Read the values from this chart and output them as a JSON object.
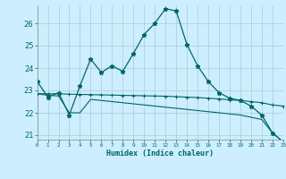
{
  "xlabel": "Humidex (Indice chaleur)",
  "background_color": "#cceeff",
  "grid_color": "#aacccc",
  "line_color": "#006666",
  "xlim": [
    0,
    23
  ],
  "ylim": [
    20.8,
    26.8
  ],
  "yticks": [
    21,
    22,
    23,
    24,
    25,
    26
  ],
  "xticks": [
    0,
    1,
    2,
    3,
    4,
    5,
    6,
    7,
    8,
    9,
    10,
    11,
    12,
    13,
    14,
    15,
    16,
    17,
    18,
    19,
    20,
    21,
    22,
    23
  ],
  "series1_x": [
    0,
    1,
    2,
    3,
    4,
    5,
    6,
    7,
    8,
    9,
    10,
    11,
    12,
    13,
    14,
    15,
    16,
    17,
    18,
    19,
    20,
    21,
    22,
    23
  ],
  "series1_y": [
    23.4,
    22.7,
    22.9,
    21.9,
    23.2,
    24.4,
    23.8,
    24.1,
    23.85,
    24.65,
    25.5,
    26.0,
    26.65,
    26.55,
    25.05,
    24.1,
    23.4,
    22.9,
    22.65,
    22.55,
    22.3,
    21.9,
    21.1,
    20.7
  ],
  "series2_x": [
    0,
    1,
    2,
    3,
    4,
    5,
    6,
    7,
    8,
    9,
    10,
    11,
    12,
    13,
    14,
    15,
    16,
    17,
    18,
    19,
    20,
    21,
    22,
    23
  ],
  "series2_y": [
    22.85,
    22.85,
    22.85,
    22.83,
    22.82,
    22.81,
    22.8,
    22.79,
    22.78,
    22.77,
    22.76,
    22.75,
    22.74,
    22.72,
    22.7,
    22.68,
    22.65,
    22.62,
    22.58,
    22.55,
    22.5,
    22.45,
    22.35,
    22.3
  ],
  "series3_x": [
    0,
    1,
    2,
    3,
    4,
    5,
    6,
    7,
    8,
    9,
    10,
    11,
    12,
    13,
    14,
    15,
    16,
    17,
    18,
    19,
    20,
    21,
    22,
    23
  ],
  "series3_y": [
    22.85,
    22.78,
    22.75,
    22.0,
    22.0,
    22.6,
    22.55,
    22.5,
    22.45,
    22.4,
    22.35,
    22.3,
    22.25,
    22.2,
    22.15,
    22.1,
    22.05,
    22.0,
    21.95,
    21.9,
    21.8,
    21.7,
    21.1,
    20.7
  ]
}
